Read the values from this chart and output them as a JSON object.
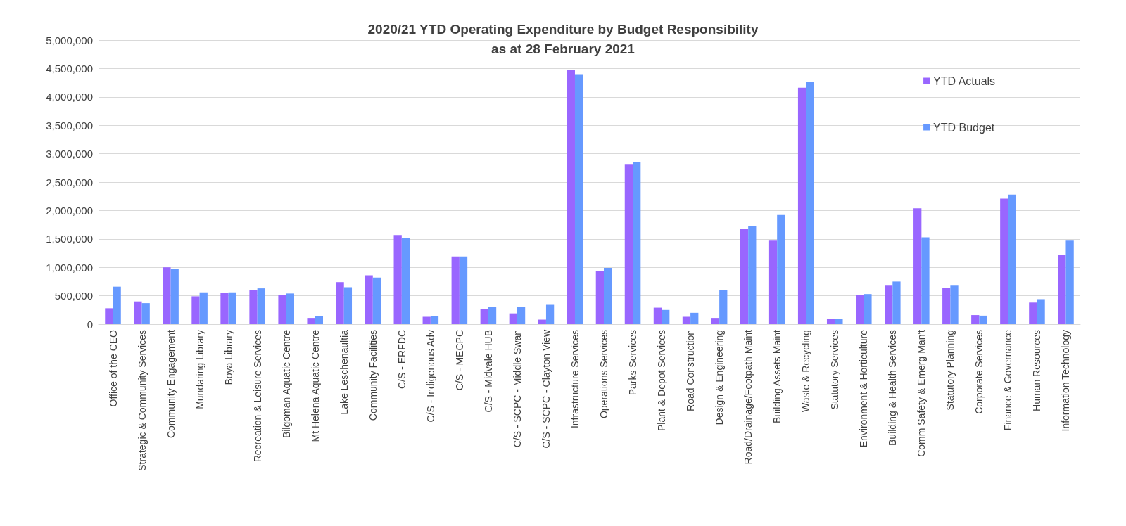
{
  "chart_data": {
    "type": "bar",
    "title": "2020/21 YTD Operating Expenditure by Budget Responsibility\nas at 28 February 2021",
    "categories": [
      "Office of the CEO",
      "Strategic & Community Services",
      "Community Engagement",
      "Mundaring Library",
      "Boya Library",
      "Recreation & Leisure Services",
      "Bilgoman Aquatic Centre",
      "Mt Helena Aquatic Centre",
      "Lake Leschenaultia",
      "Community Facilities",
      "C/S - ERFDC",
      "C/S - Indigenous Adv",
      "C/S - MECPC",
      "C/S - Midvale HUB",
      "C/S - SCPC - Middle Swan",
      "C/S - SCPC - Clayton View",
      "Infrastructure Services",
      "Operations Services",
      "Parks Services",
      "Plant & Depot Services",
      "Road Construction",
      "Design & Engineering",
      "Road/Drainage/Footpath Maint",
      "Building Assets Maint",
      "Waste & Recycling",
      "Statutory Services",
      "Environment & Horticulture",
      "Building & Health Services",
      "Comm Safety & Emerg Man't",
      "Statutory Planning",
      "Corporate Services",
      "Finance & Governance",
      "Human Resources",
      "Information Technology"
    ],
    "series": [
      {
        "name": "YTD Actuals",
        "color": "#9966ff",
        "values": [
          280000,
          400000,
          1000000,
          490000,
          550000,
          600000,
          510000,
          110000,
          740000,
          860000,
          1570000,
          130000,
          1190000,
          260000,
          190000,
          80000,
          4470000,
          940000,
          2820000,
          290000,
          130000,
          110000,
          1680000,
          1470000,
          4160000,
          90000,
          510000,
          690000,
          2040000,
          640000,
          160000,
          2210000,
          380000,
          1220000
        ]
      },
      {
        "name": "YTD Budget",
        "color": "#6699ff",
        "values": [
          660000,
          370000,
          970000,
          560000,
          560000,
          630000,
          540000,
          140000,
          650000,
          820000,
          1520000,
          140000,
          1190000,
          300000,
          300000,
          340000,
          4400000,
          990000,
          2860000,
          250000,
          200000,
          600000,
          1730000,
          1920000,
          4260000,
          90000,
          530000,
          750000,
          1530000,
          690000,
          150000,
          2280000,
          440000,
          1470000
        ]
      }
    ],
    "ylim": [
      0,
      5000000
    ],
    "yticks": [
      0,
      {
        "value": 500000,
        "label": "500,000"
      },
      {
        "value": 1000000,
        "label": "1,000,000"
      },
      {
        "value": 1500000,
        "label": "1,500,000"
      },
      {
        "value": 2000000,
        "label": "2,000,000"
      },
      {
        "value": 2500000,
        "label": "2,500,000"
      },
      {
        "value": 3000000,
        "label": "3,000,000"
      },
      {
        "value": 3500000,
        "label": "3,500,000"
      },
      {
        "value": 4000000,
        "label": "4,000,000"
      },
      {
        "value": 4500000,
        "label": "4,500,000"
      },
      {
        "value": 5000000,
        "label": "5,000,000"
      }
    ],
    "grid": "y",
    "legend": "top right"
  }
}
